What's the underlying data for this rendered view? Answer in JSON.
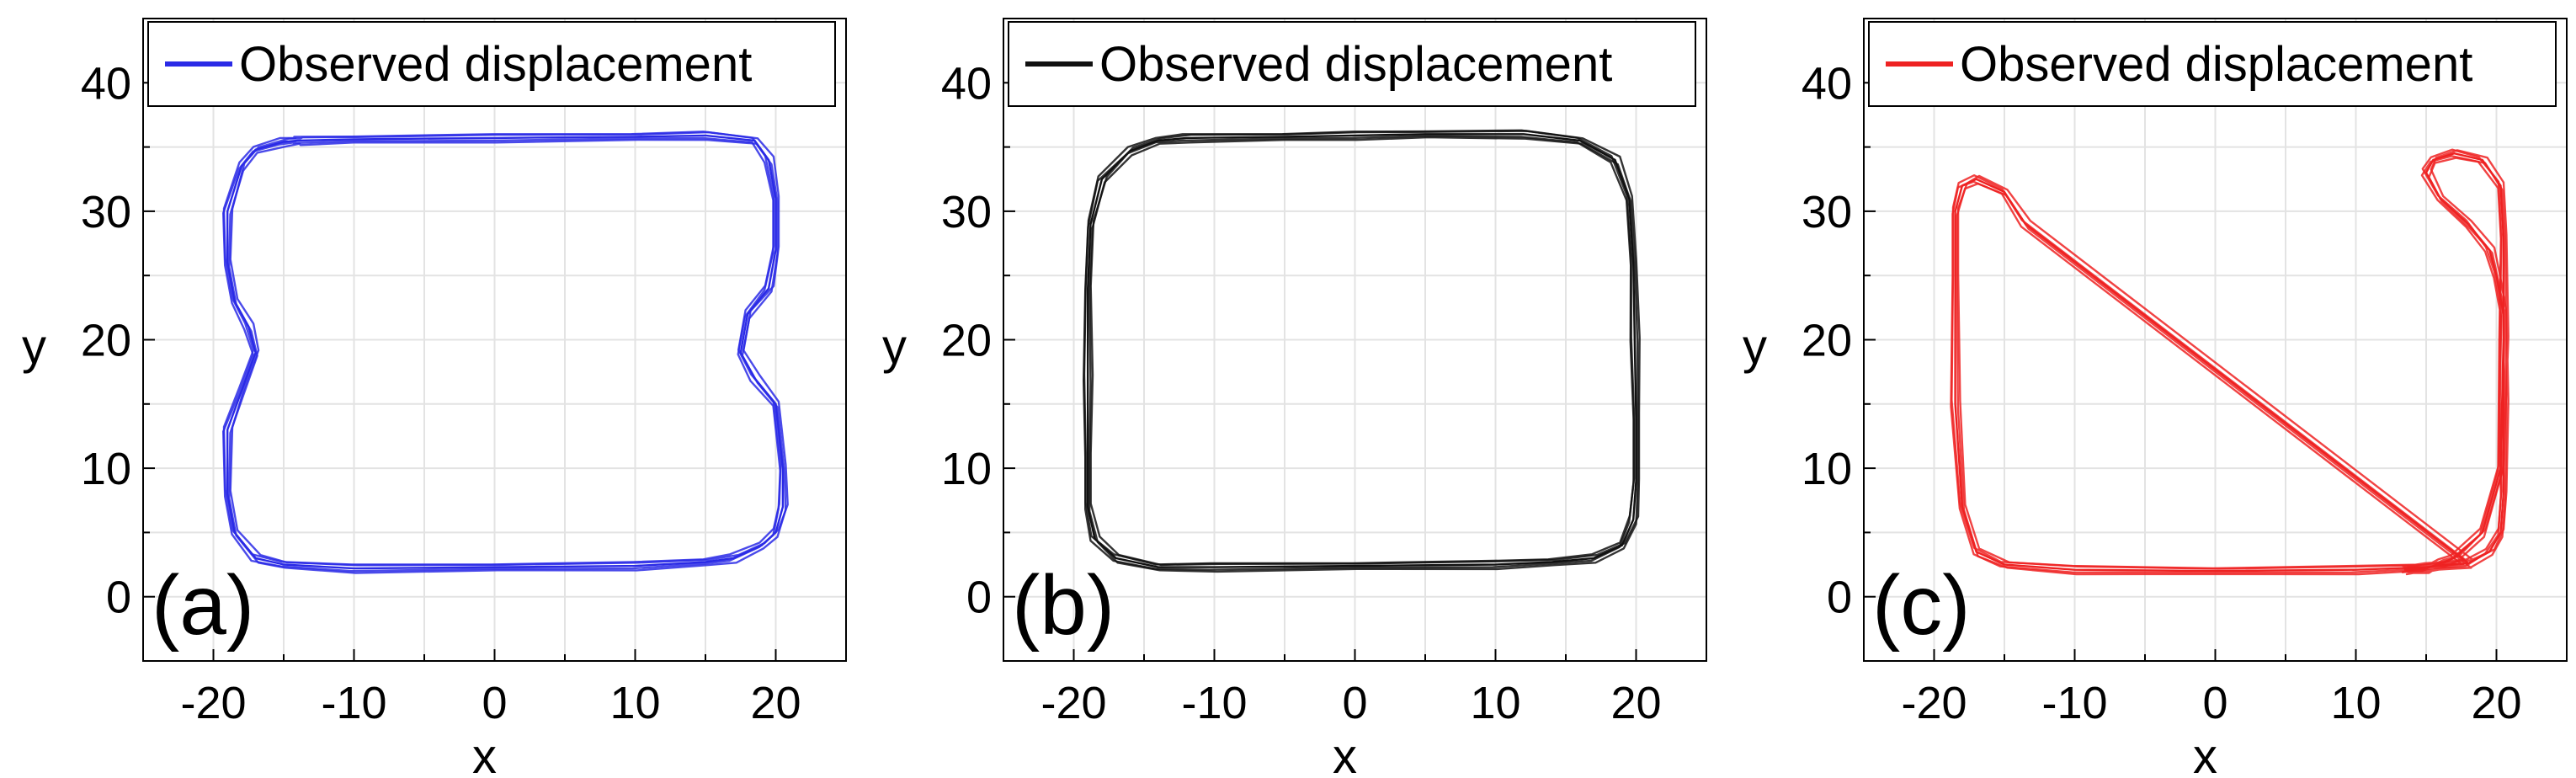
{
  "chart_data": [
    {
      "type": "line",
      "panel_label": "(a)",
      "xlabel": "x",
      "ylabel": "y",
      "xlim": [
        -25,
        25
      ],
      "ylim": [
        -5,
        45
      ],
      "xticks": [
        -20,
        -10,
        0,
        10,
        20
      ],
      "yticks": [
        0,
        10,
        20,
        30,
        40
      ],
      "grid": true,
      "legend": {
        "placement": "top",
        "entries": [
          "Observed displacement"
        ]
      },
      "color": "#2a2ae6",
      "series": [
        {
          "name": "Observed displacement",
          "x": [
            -14,
            -10,
            0,
            10,
            15,
            18.5,
            19.5,
            20,
            20,
            19.5,
            18,
            17.5,
            18.5,
            20,
            20.5,
            20.5,
            20,
            19,
            17,
            15,
            10,
            0,
            -10,
            -15,
            -17,
            -18.5,
            -19,
            -19,
            -18,
            -17,
            -17.5,
            -18.5,
            -19,
            -19,
            -18,
            -17,
            -15,
            -14
          ],
          "y": [
            35.5,
            35.6,
            35.7,
            35.8,
            35.9,
            35.5,
            34,
            31,
            27,
            24,
            22,
            19,
            17,
            15,
            10,
            7,
            5,
            4,
            3,
            2.7,
            2.4,
            2.3,
            2.2,
            2.5,
            3,
            5,
            8,
            13,
            16,
            19,
            21,
            23,
            26,
            30,
            33.5,
            34.8,
            35.4,
            35.5
          ]
        }
      ]
    },
    {
      "type": "line",
      "panel_label": "(b)",
      "xlabel": "x",
      "ylabel": "y",
      "xlim": [
        -25,
        25
      ],
      "ylim": [
        -5,
        45
      ],
      "xticks": [
        -20,
        -10,
        0,
        10,
        20
      ],
      "yticks": [
        0,
        10,
        20,
        30,
        40
      ],
      "grid": true,
      "legend": {
        "placement": "top",
        "entries": [
          "Observed displacement"
        ]
      },
      "color": "#111111",
      "series": [
        {
          "name": "Observed displacement",
          "x": [
            -12,
            -5,
            0,
            5,
            12,
            16,
            18.5,
            19.5,
            19.8,
            19.9,
            20,
            20,
            19.8,
            19,
            17,
            14,
            10,
            0,
            -10,
            -14,
            -17,
            -18.5,
            -19,
            -19,
            -19,
            -19,
            -18.8,
            -18,
            -16,
            -14,
            -12
          ],
          "y": [
            35.7,
            35.8,
            35.9,
            36,
            36,
            35.5,
            34,
            31,
            26,
            20,
            14,
            9,
            6,
            4,
            3,
            2.7,
            2.5,
            2.4,
            2.3,
            2.3,
            3,
            4.5,
            7,
            11,
            17,
            24,
            29,
            32.5,
            34.7,
            35.5,
            35.7
          ]
        }
      ]
    },
    {
      "type": "line",
      "panel_label": "(c)",
      "xlabel": "x",
      "ylabel": "y",
      "xlim": [
        -25,
        25
      ],
      "ylim": [
        -5,
        45
      ],
      "xticks": [
        -20,
        -10,
        0,
        10,
        20
      ],
      "yticks": [
        0,
        10,
        20,
        30,
        40
      ],
      "grid": true,
      "legend": {
        "placement": "top",
        "entries": [
          "Observed displacement"
        ]
      },
      "color": "#ee2222",
      "series": [
        {
          "name": "Observed displacement",
          "x": [
            -13.5,
            -15,
            -17,
            -18,
            -18.5,
            -18.5,
            -18.5,
            -18,
            -17,
            -15,
            -10,
            0,
            10,
            15,
            18,
            19.5,
            20.3,
            20.5,
            20.5,
            20.5,
            20,
            19.5,
            18,
            16,
            15,
            15.5,
            17,
            19,
            20.3,
            20.5,
            20.5,
            20.3,
            19,
            17,
            16,
            15.5,
            15,
            14,
            13.5,
            14,
            15,
            16.5,
            18
          ],
          "y": [
            29,
            31.5,
            32.5,
            32,
            30,
            25,
            15,
            7,
            3.5,
            2.5,
            2.1,
            2.0,
            2.1,
            2.3,
            2.6,
            3.5,
            5,
            8,
            15,
            22,
            25,
            27,
            29,
            31,
            33,
            34,
            34.5,
            34,
            32,
            28,
            20,
            10,
            5,
            3,
            2.6,
            2.4,
            2.2,
            2.1,
            2.1,
            2.2,
            2.3,
            2.5,
            2.6
          ]
        }
      ]
    }
  ]
}
